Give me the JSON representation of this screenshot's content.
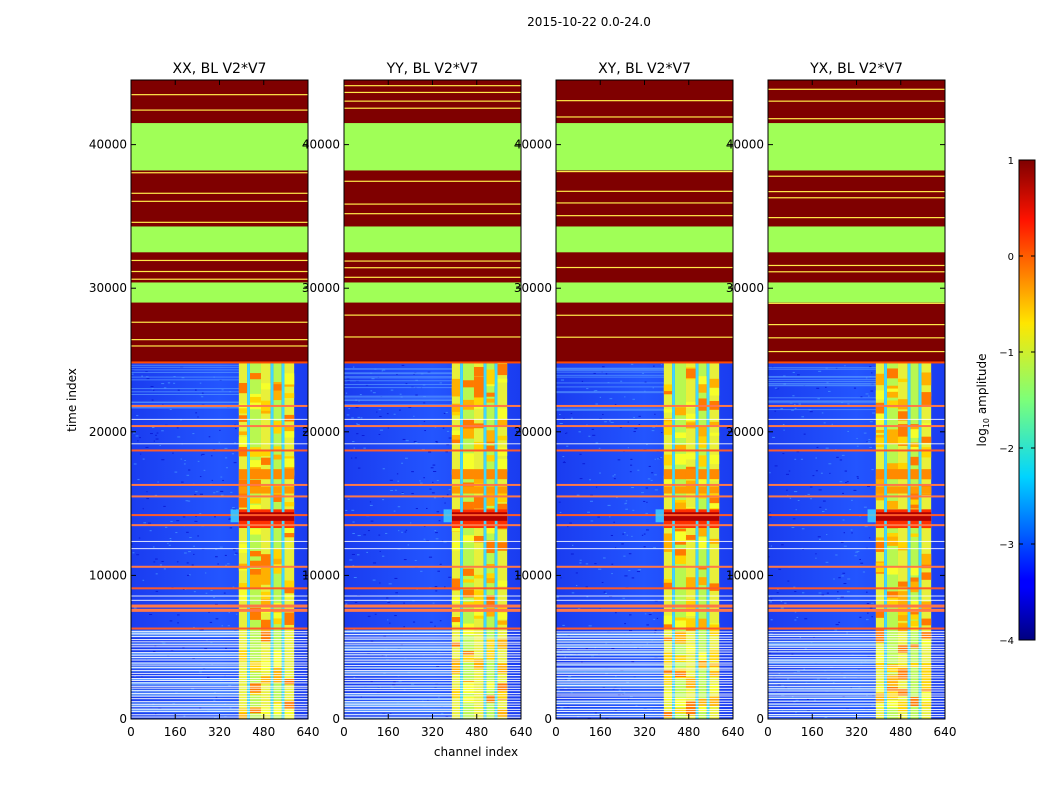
{
  "chart_data": {
    "type": "heatmap",
    "suptitle": "2015-10-22 0.0-24.0",
    "xlabel": "channel index",
    "ylabel": "time index",
    "xlim": [
      0,
      640
    ],
    "ylim": [
      0,
      44500
    ],
    "xticks": [
      0,
      160,
      320,
      480,
      640
    ],
    "yticks": [
      0,
      10000,
      20000,
      30000,
      40000
    ],
    "panels": [
      {
        "title": "XX, BL V2*V7"
      },
      {
        "title": "YY, BL V2*V7"
      },
      {
        "title": "XY, BL V2*V7"
      },
      {
        "title": "YX, BL V2*V7"
      }
    ],
    "colorbar": {
      "label": "log$_{10}$ amplitude",
      "vmin": -4,
      "vmax": 1,
      "ticks": [
        -4,
        -3,
        -2,
        -1,
        0,
        1
      ],
      "tick_labels": [
        "−4",
        "−3",
        "−2",
        "−1",
        "0",
        "1"
      ],
      "colormap": "jet"
    },
    "data_summary": {
      "flagged_value_log10": 1,
      "flagged_color": "#7f0000",
      "gap_value_log10": -1.2,
      "gap_color": "#a0ff57",
      "background_value_log10": -3.2,
      "background_color": "#1e46ff",
      "rfi_channel_bands": [
        [
          390,
          420
        ],
        [
          430,
          470
        ],
        [
          470,
          505
        ],
        [
          515,
          545
        ],
        [
          555,
          590
        ]
      ],
      "flagged_time_ranges": [
        [
          24800,
          44500
        ]
      ],
      "gap_time_ranges": [
        [
          38200,
          41500
        ],
        [
          29000,
          30400
        ],
        [
          32500,
          34300
        ]
      ],
      "flagged_time_rows": [
        6300,
        7600,
        7900,
        9100,
        10600,
        13500,
        14200,
        15500,
        16300,
        18700,
        20400,
        21800
      ]
    }
  }
}
